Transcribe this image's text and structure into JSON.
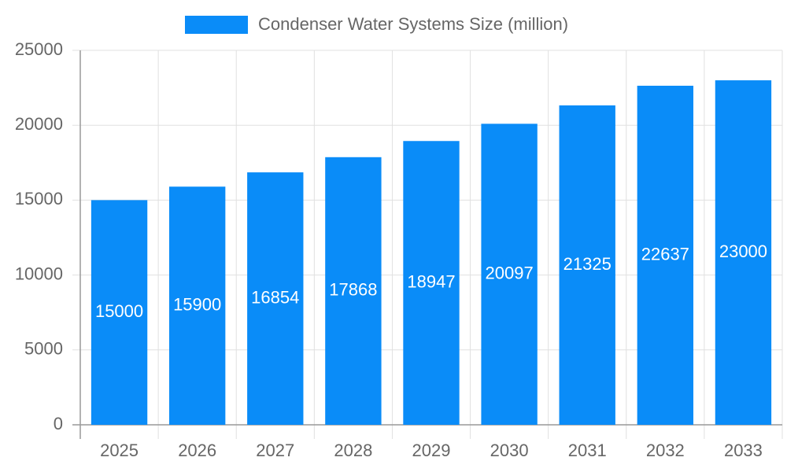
{
  "chart_data": {
    "type": "bar",
    "series": [
      {
        "name": "Condenser Water Systems Size (million)",
        "color": "#0a8cf8",
        "values": [
          15000,
          15900,
          16854,
          17868,
          18947,
          20097,
          21325,
          22637,
          23000
        ]
      }
    ],
    "categories": [
      "2025",
      "2026",
      "2027",
      "2028",
      "2029",
      "2030",
      "2031",
      "2032",
      "2033"
    ],
    "ylim": [
      0,
      25000
    ],
    "yticks": [
      0,
      5000,
      10000,
      15000,
      20000,
      25000
    ],
    "grid": true,
    "legend": "top"
  }
}
